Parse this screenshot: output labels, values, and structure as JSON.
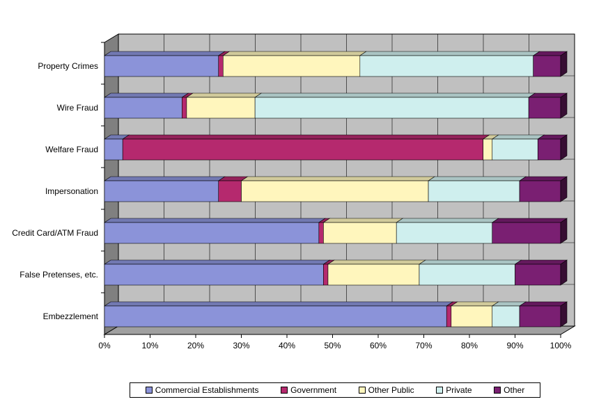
{
  "chart_data": {
    "type": "bar",
    "orientation": "horizontal",
    "stacked": "percent",
    "categories": [
      "Property Crimes",
      "Wire Fraud",
      "Welfare Fraud",
      "Impersonation",
      "Credit Card/ATM Fraud",
      "False Pretenses, etc.",
      "Embezzlement"
    ],
    "series": [
      {
        "name": "Commercial Establishments",
        "color": "#8B93D9",
        "values": [
          25,
          17,
          4,
          25,
          47,
          48,
          75
        ]
      },
      {
        "name": "Government",
        "color": "#B5296E",
        "values": [
          1,
          1,
          79,
          5,
          1,
          1,
          1
        ]
      },
      {
        "name": "Other Public",
        "color": "#FFF6BD",
        "values": [
          30,
          15,
          2,
          41,
          16,
          20,
          9
        ]
      },
      {
        "name": "Private",
        "color": "#CFEFEE",
        "values": [
          38,
          60,
          10,
          20,
          21,
          21,
          6
        ]
      },
      {
        "name": "Other",
        "color": "#7A1F72",
        "values": [
          6,
          7,
          5,
          9,
          15,
          10,
          9
        ]
      }
    ],
    "x_ticks": [
      "0%",
      "10%",
      "20%",
      "30%",
      "40%",
      "50%",
      "60%",
      "70%",
      "80%",
      "90%",
      "100%"
    ],
    "xlim": [
      0,
      100
    ],
    "grid": true,
    "legend_position": "bottom",
    "background_color": "#C0C0C0",
    "side_wall_color": "#808080"
  }
}
